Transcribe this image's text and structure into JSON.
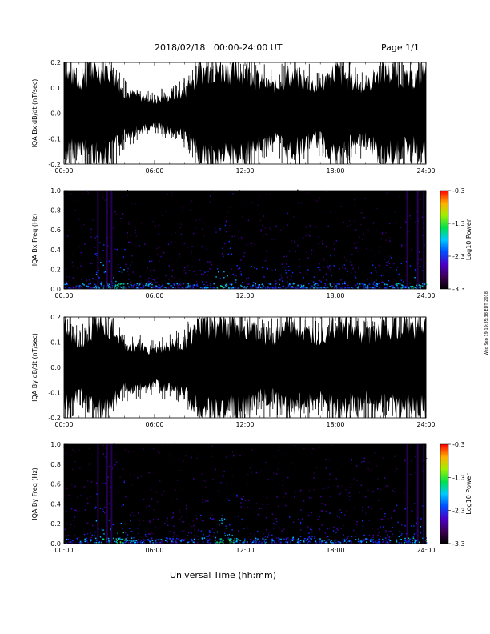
{
  "header": {
    "date_range": "2018/02/18   00:00-24:00 UT",
    "page": "Page 1/1"
  },
  "footer": {
    "x_axis_title": "Universal Time (hh:mm)",
    "timestamp": "Wed Sep 19 19:35:38 EDT 2018"
  },
  "chart_data": [
    {
      "type": "line",
      "panel": "IQA Bx dB/dt",
      "ylabel": "IQA Bx dB/dt (nT/sec)",
      "x_ticks": [
        "00:00",
        "06:00",
        "12:00",
        "18:00",
        "24:00"
      ],
      "y_ticks": [
        "0.2",
        "0.1",
        "0.0",
        "-0.1",
        "-0.2"
      ],
      "xlim": [
        0,
        24
      ],
      "ylim": [
        -0.2,
        0.2
      ],
      "series": [
        {
          "x": [
            0,
            1,
            2,
            3,
            4,
            5,
            6,
            7,
            8,
            9,
            10,
            11,
            12,
            13,
            14,
            15,
            16,
            17,
            18,
            19,
            20,
            21,
            22,
            23,
            24
          ],
          "envelope": [
            0.2,
            0.15,
            0.2,
            0.2,
            0.1,
            0.08,
            0.06,
            0.08,
            0.1,
            0.2,
            0.2,
            0.2,
            0.2,
            0.15,
            0.12,
            0.18,
            0.15,
            0.12,
            0.2,
            0.15,
            0.12,
            0.2,
            0.18,
            0.15,
            0.2
          ]
        }
      ]
    },
    {
      "type": "heatmap",
      "panel": "IQA Bx Freq",
      "ylabel": "IQA Bx Freq (Hz)",
      "x_ticks": [
        "00:00",
        "06:00",
        "12:00",
        "18:00",
        "24:00"
      ],
      "y_ticks": [
        "1.0",
        "0.8",
        "0.6",
        "0.4",
        "0.2",
        "0.0"
      ],
      "xlim": [
        0,
        24
      ],
      "ylim": [
        0,
        1.0
      ],
      "colorbar": {
        "label": "Log10 Power",
        "ticks": [
          "-0.3",
          "-1.3",
          "-2.3",
          "-3.3"
        ],
        "range": [
          -3.3,
          -0.3
        ]
      }
    },
    {
      "type": "line",
      "panel": "IQA By dB/dt",
      "ylabel": "IQA By dB/dt (nT/sec)",
      "x_ticks": [
        "00:00",
        "06:00",
        "12:00",
        "18:00",
        "24:00"
      ],
      "y_ticks": [
        "0.2",
        "0.1",
        "0.0",
        "-0.1",
        "-0.2"
      ],
      "xlim": [
        0,
        24
      ],
      "ylim": [
        -0.2,
        0.2
      ],
      "series": [
        {
          "x": [
            0,
            1,
            2,
            3,
            4,
            5,
            6,
            7,
            8,
            9,
            10,
            11,
            12,
            13,
            14,
            15,
            16,
            17,
            18,
            19,
            20,
            21,
            22,
            23,
            24
          ],
          "envelope": [
            0.2,
            0.12,
            0.2,
            0.2,
            0.1,
            0.1,
            0.08,
            0.1,
            0.12,
            0.2,
            0.2,
            0.2,
            0.2,
            0.15,
            0.15,
            0.2,
            0.15,
            0.15,
            0.2,
            0.18,
            0.15,
            0.18,
            0.2,
            0.18,
            0.2
          ]
        }
      ]
    },
    {
      "type": "heatmap",
      "panel": "IQA By Freq",
      "ylabel": "IQA By Freq (Hz)",
      "x_ticks": [
        "00:00",
        "06:00",
        "12:00",
        "18:00",
        "24:00"
      ],
      "y_ticks": [
        "1.0",
        "0.8",
        "0.6",
        "0.4",
        "0.2",
        "0.0"
      ],
      "xlim": [
        0,
        24
      ],
      "ylim": [
        0,
        1.0
      ],
      "colorbar": {
        "label": "Log10 Power",
        "ticks": [
          "-0.3",
          "-1.3",
          "-2.3",
          "-3.3"
        ],
        "range": [
          -3.3,
          -0.3
        ]
      }
    }
  ]
}
